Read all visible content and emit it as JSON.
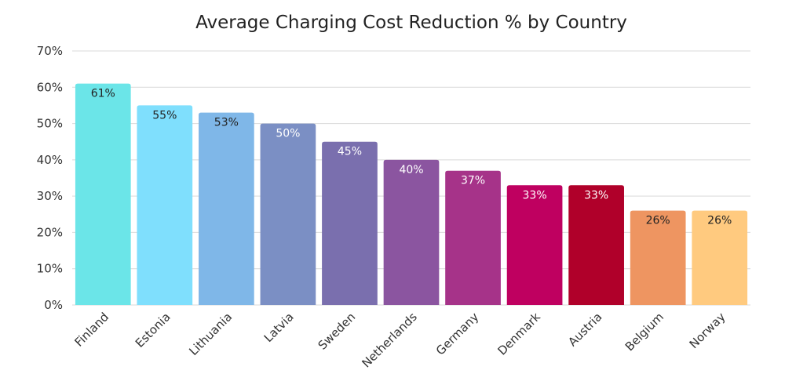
{
  "chart_data": {
    "type": "bar",
    "title": "Average Charging Cost Reduction % by Country",
    "xlabel": "",
    "ylabel": "",
    "ylim": [
      0,
      70
    ],
    "yticks": [
      "0%",
      "10%",
      "20%",
      "30%",
      "40%",
      "50%",
      "60%",
      "70%"
    ],
    "ytick_values": [
      0,
      10,
      20,
      30,
      40,
      50,
      60,
      70
    ],
    "grid": true,
    "categories": [
      "Finland",
      "Estonia",
      "Lithuania",
      "Latvia",
      "Sweden",
      "Netherlands",
      "Germany",
      "Denmark",
      "Austria",
      "Belgium",
      "Norway"
    ],
    "values": [
      61,
      55,
      53,
      50,
      45,
      40,
      37,
      33,
      33,
      26,
      26
    ],
    "data_labels": [
      "61%",
      "55%",
      "53%",
      "50%",
      "45%",
      "40%",
      "37%",
      "33%",
      "33%",
      "26%",
      "26%"
    ],
    "colors": [
      "#6be5e8",
      "#7fdffd",
      "#7fb7e8",
      "#7b8fc4",
      "#7a6fae",
      "#8b55a0",
      "#a63389",
      "#bf0060",
      "#b0002a",
      "#ee9561",
      "#ffca7f"
    ],
    "label_colors": [
      "#222222",
      "#222222",
      "#222222",
      "#ffffff",
      "#ffffff",
      "#ffffff",
      "#ffffff",
      "#ffffff",
      "#ffffff",
      "#222222",
      "#222222"
    ]
  }
}
